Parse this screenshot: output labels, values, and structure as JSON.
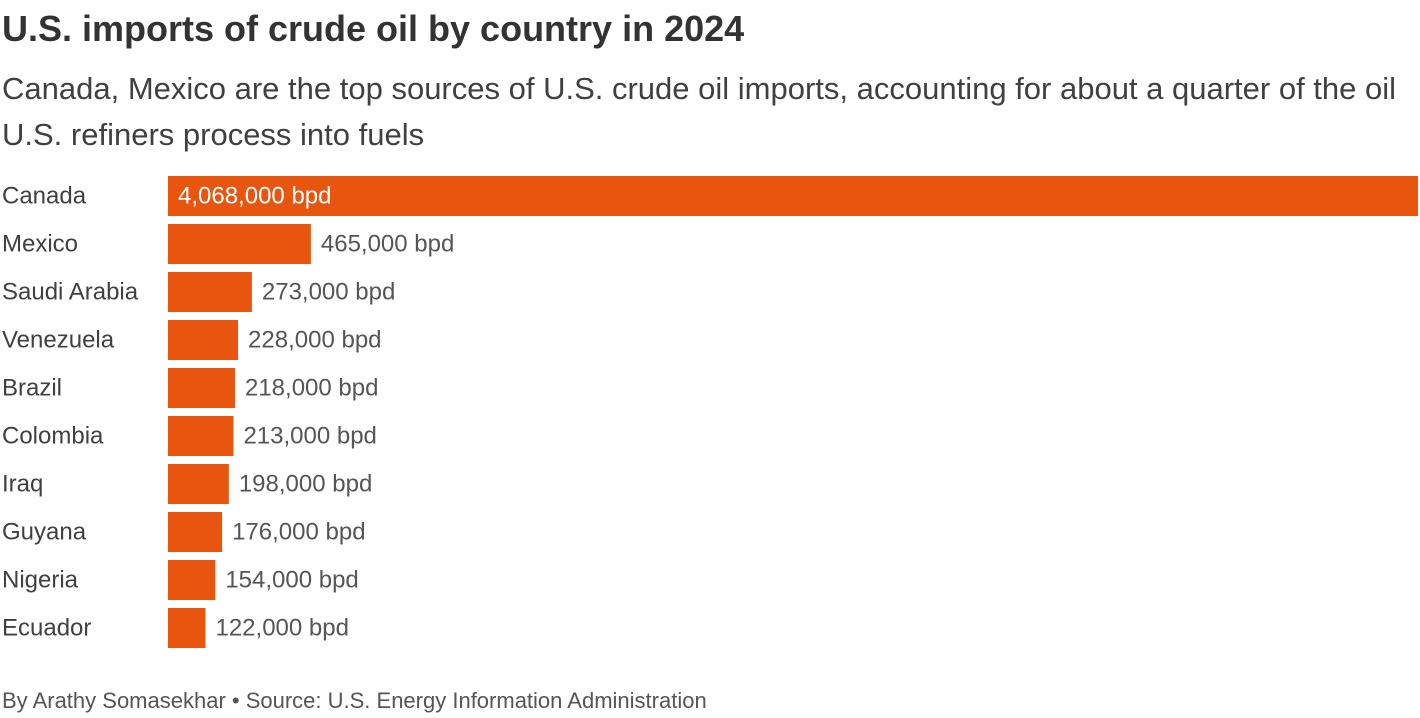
{
  "header": {
    "title": "U.S. imports of crude oil by country in 2024",
    "subtitle": "Canada, Mexico are the top sources of U.S. crude oil imports, accounting for about a quarter of the oil U.S. refiners process into fuels"
  },
  "footer": {
    "credit": "By Arathy Somasekhar • Source: U.S. Energy Information Administration"
  },
  "colors": {
    "bar": "#e8550f",
    "label_inside": "#ffffff",
    "label_outside": "#555555"
  },
  "chart_data": {
    "type": "bar",
    "orientation": "horizontal",
    "title": "U.S. imports of crude oil by country in 2024",
    "subtitle": "Canada, Mexico are the top sources of U.S. crude oil imports, accounting for about a quarter of the oil U.S. refiners process into fuels",
    "unit": "bpd",
    "categories": [
      "Canada",
      "Mexico",
      "Saudi Arabia",
      "Venezuela",
      "Brazil",
      "Colombia",
      "Iraq",
      "Guyana",
      "Nigeria",
      "Ecuador"
    ],
    "values": [
      4068000,
      465000,
      273000,
      228000,
      218000,
      213000,
      198000,
      176000,
      154000,
      122000
    ],
    "value_labels": [
      "4,068,000 bpd",
      "465,000 bpd",
      "273,000 bpd",
      "228,000 bpd",
      "218,000 bpd",
      "213,000 bpd",
      "198,000 bpd",
      "176,000 bpd",
      "154,000 bpd",
      "122,000 bpd"
    ],
    "xlim": [
      0,
      4068000
    ],
    "grid": false,
    "legend": "none"
  }
}
